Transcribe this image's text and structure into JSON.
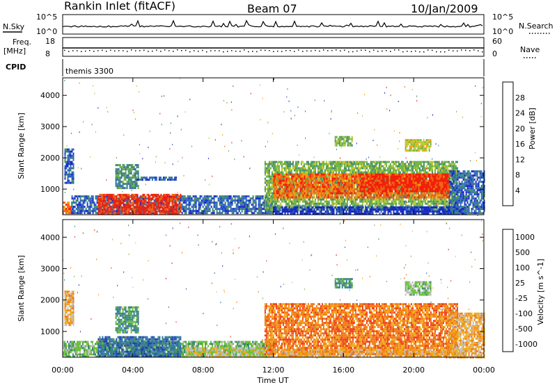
{
  "header": {
    "station": "Rankin Inlet (fitACF)",
    "beam": "Beam 07",
    "date": "10/Jan/2009"
  },
  "strip_labels": {
    "nsky": "N.Sky",
    "nsky_tick_top": "10^5",
    "nsky_tick_bottom": "10^0",
    "nsearch": "N.Search",
    "nsearch_tick_top": "10^5",
    "nsearch_tick_bottom": "10^0",
    "freq": "Freq.",
    "freq_unit": "[MHz]",
    "freq_tick_top": "18",
    "freq_tick_bottom": "8",
    "nave": "Nave",
    "nave_tick_top": "60",
    "nave_tick_bottom": "0",
    "cpid_label": "CPID",
    "cpid_value": "themis 3300"
  },
  "colors": {
    "white": "#ffffff",
    "ink": "#000000",
    "power_scale": [
      "#1428c8",
      "#2e64c0",
      "#3f8a6a",
      "#6ab040",
      "#b8c828",
      "#f0a014",
      "#f06414",
      "#f01e0a"
    ],
    "velocity_scale": [
      "#1a3cb4",
      "#2f6fb0",
      "#3f8f6a",
      "#6cc03c",
      "#c0c0c0",
      "#f0a814",
      "#f07814",
      "#f03c14",
      "#f01010"
    ]
  },
  "chart_data": [
    {
      "type": "heatmap",
      "name": "power",
      "ylabel": "Slant Range [km]",
      "xlabel": "Time UT",
      "x_ticks": [
        "00:00",
        "04:00",
        "08:00",
        "12:00",
        "16:00",
        "20:00",
        "00:00"
      ],
      "xlim_hours": [
        0,
        24
      ],
      "ylim_km": [
        180,
        4560
      ],
      "y_ticks": [
        "1000",
        "2000",
        "3000",
        "4000"
      ],
      "colorbar_label": "Power [dB]",
      "colorbar_ticks": [
        "4",
        "8",
        "12",
        "16",
        "20",
        "24",
        "28"
      ],
      "regions": [
        {
          "t0": 0.0,
          "t1": 0.5,
          "r0": 200,
          "r1": 600,
          "level": 6
        },
        {
          "t0": 0.1,
          "t1": 0.6,
          "r0": 1200,
          "r1": 2300,
          "level": 1
        },
        {
          "t0": 0.5,
          "t1": 12.0,
          "r0": 200,
          "r1": 800,
          "level": 1
        },
        {
          "t0": 2.0,
          "t1": 6.7,
          "r0": 200,
          "r1": 850,
          "level": 7
        },
        {
          "t0": 3.0,
          "t1": 4.3,
          "r0": 1000,
          "r1": 1800,
          "level": 2
        },
        {
          "t0": 4.2,
          "t1": 6.5,
          "r0": 1300,
          "r1": 1400,
          "level": 1
        },
        {
          "t0": 11.5,
          "t1": 22.5,
          "r0": 300,
          "r1": 1900,
          "level": 3
        },
        {
          "t0": 12.0,
          "t1": 22.0,
          "r0": 700,
          "r1": 1500,
          "level": 6
        },
        {
          "t0": 17.0,
          "t1": 22.0,
          "r0": 900,
          "r1": 1500,
          "level": 7
        },
        {
          "t0": 12.0,
          "t1": 23.0,
          "r0": 200,
          "r1": 450,
          "level": 0
        },
        {
          "t0": 15.5,
          "t1": 16.5,
          "r0": 2400,
          "r1": 2700,
          "level": 3
        },
        {
          "t0": 19.5,
          "t1": 21.0,
          "r0": 2200,
          "r1": 2600,
          "level": 4
        },
        {
          "t0": 22.0,
          "t1": 24.0,
          "r0": 200,
          "r1": 1600,
          "level": 1
        }
      ]
    },
    {
      "type": "heatmap",
      "name": "velocity",
      "ylabel": "Slant Range [km]",
      "xlabel": "Time UT",
      "x_ticks": [
        "00:00",
        "04:00",
        "08:00",
        "12:00",
        "16:00",
        "20:00",
        "00:00"
      ],
      "xlim_hours": [
        0,
        24
      ],
      "ylim_km": [
        180,
        4560
      ],
      "y_ticks": [
        "1000",
        "2000",
        "3000",
        "4000"
      ],
      "colorbar_label": "Velocity [m s^-1]",
      "colorbar_ticks": [
        "1000",
        "500",
        "100",
        "25",
        "-25",
        "-100",
        "-500",
        "-1000"
      ],
      "regions": [
        {
          "t0": 0.1,
          "t1": 0.6,
          "r0": 1200,
          "r1": 2300,
          "level": 5
        },
        {
          "t0": 0.0,
          "t1": 12.0,
          "r0": 200,
          "r1": 700,
          "level": 3
        },
        {
          "t0": 2.0,
          "t1": 6.7,
          "r0": 200,
          "r1": 850,
          "level": 1
        },
        {
          "t0": 3.0,
          "t1": 4.3,
          "r0": 1000,
          "r1": 1800,
          "level": 2
        },
        {
          "t0": 7.0,
          "t1": 12.0,
          "r0": 200,
          "r1": 500,
          "level": 4
        },
        {
          "t0": 11.5,
          "t1": 22.5,
          "r0": 300,
          "r1": 1900,
          "level": 6
        },
        {
          "t0": 12.0,
          "t1": 23.0,
          "r0": 200,
          "r1": 450,
          "level": 5
        },
        {
          "t0": 15.5,
          "t1": 16.5,
          "r0": 2400,
          "r1": 2700,
          "level": 2
        },
        {
          "t0": 19.5,
          "t1": 21.0,
          "r0": 2200,
          "r1": 2600,
          "level": 3
        },
        {
          "t0": 22.0,
          "t1": 24.0,
          "r0": 200,
          "r1": 1600,
          "level": 5
        }
      ]
    }
  ]
}
